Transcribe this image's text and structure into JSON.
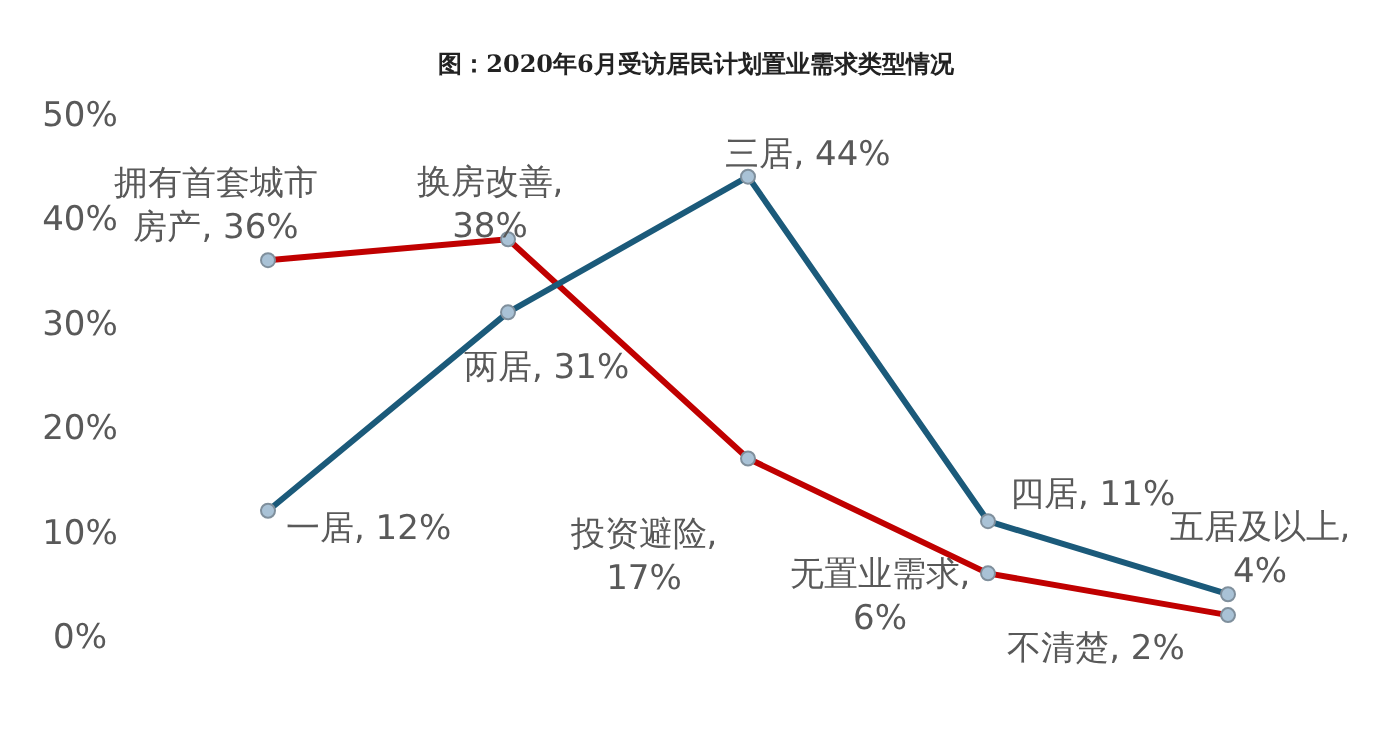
{
  "chart_data": {
    "type": "line",
    "title": "图：2020年6月受访居民计划置业需求类型情况",
    "categories": [
      null,
      null,
      null,
      null,
      null
    ],
    "ylim": [
      0,
      50
    ],
    "yticks": [
      {
        "value": 0,
        "label": "0%"
      },
      {
        "value": 10,
        "label": "10%"
      },
      {
        "value": 20,
        "label": "20%"
      },
      {
        "value": 30,
        "label": "30%"
      },
      {
        "value": 40,
        "label": "40%"
      },
      {
        "value": 50,
        "label": "50%"
      }
    ],
    "marker": "circle",
    "grid": false,
    "series": [
      {
        "color": "#c00000",
        "values": [
          36,
          38,
          17,
          6,
          2
        ],
        "value_labels": [
          "拥有首套城市房产, 36%",
          "换房改善, 38%",
          "投资避险, 17%",
          "无置业需求, 6%",
          "不清楚, 2%"
        ]
      },
      {
        "color": "#1b5a7a",
        "values": [
          12,
          31,
          44,
          11,
          4
        ],
        "value_labels": [
          "一居, 12%",
          "两居, 31%",
          "三居, 44%",
          "四居, 11%",
          "五居及以上, 4%"
        ]
      }
    ]
  }
}
